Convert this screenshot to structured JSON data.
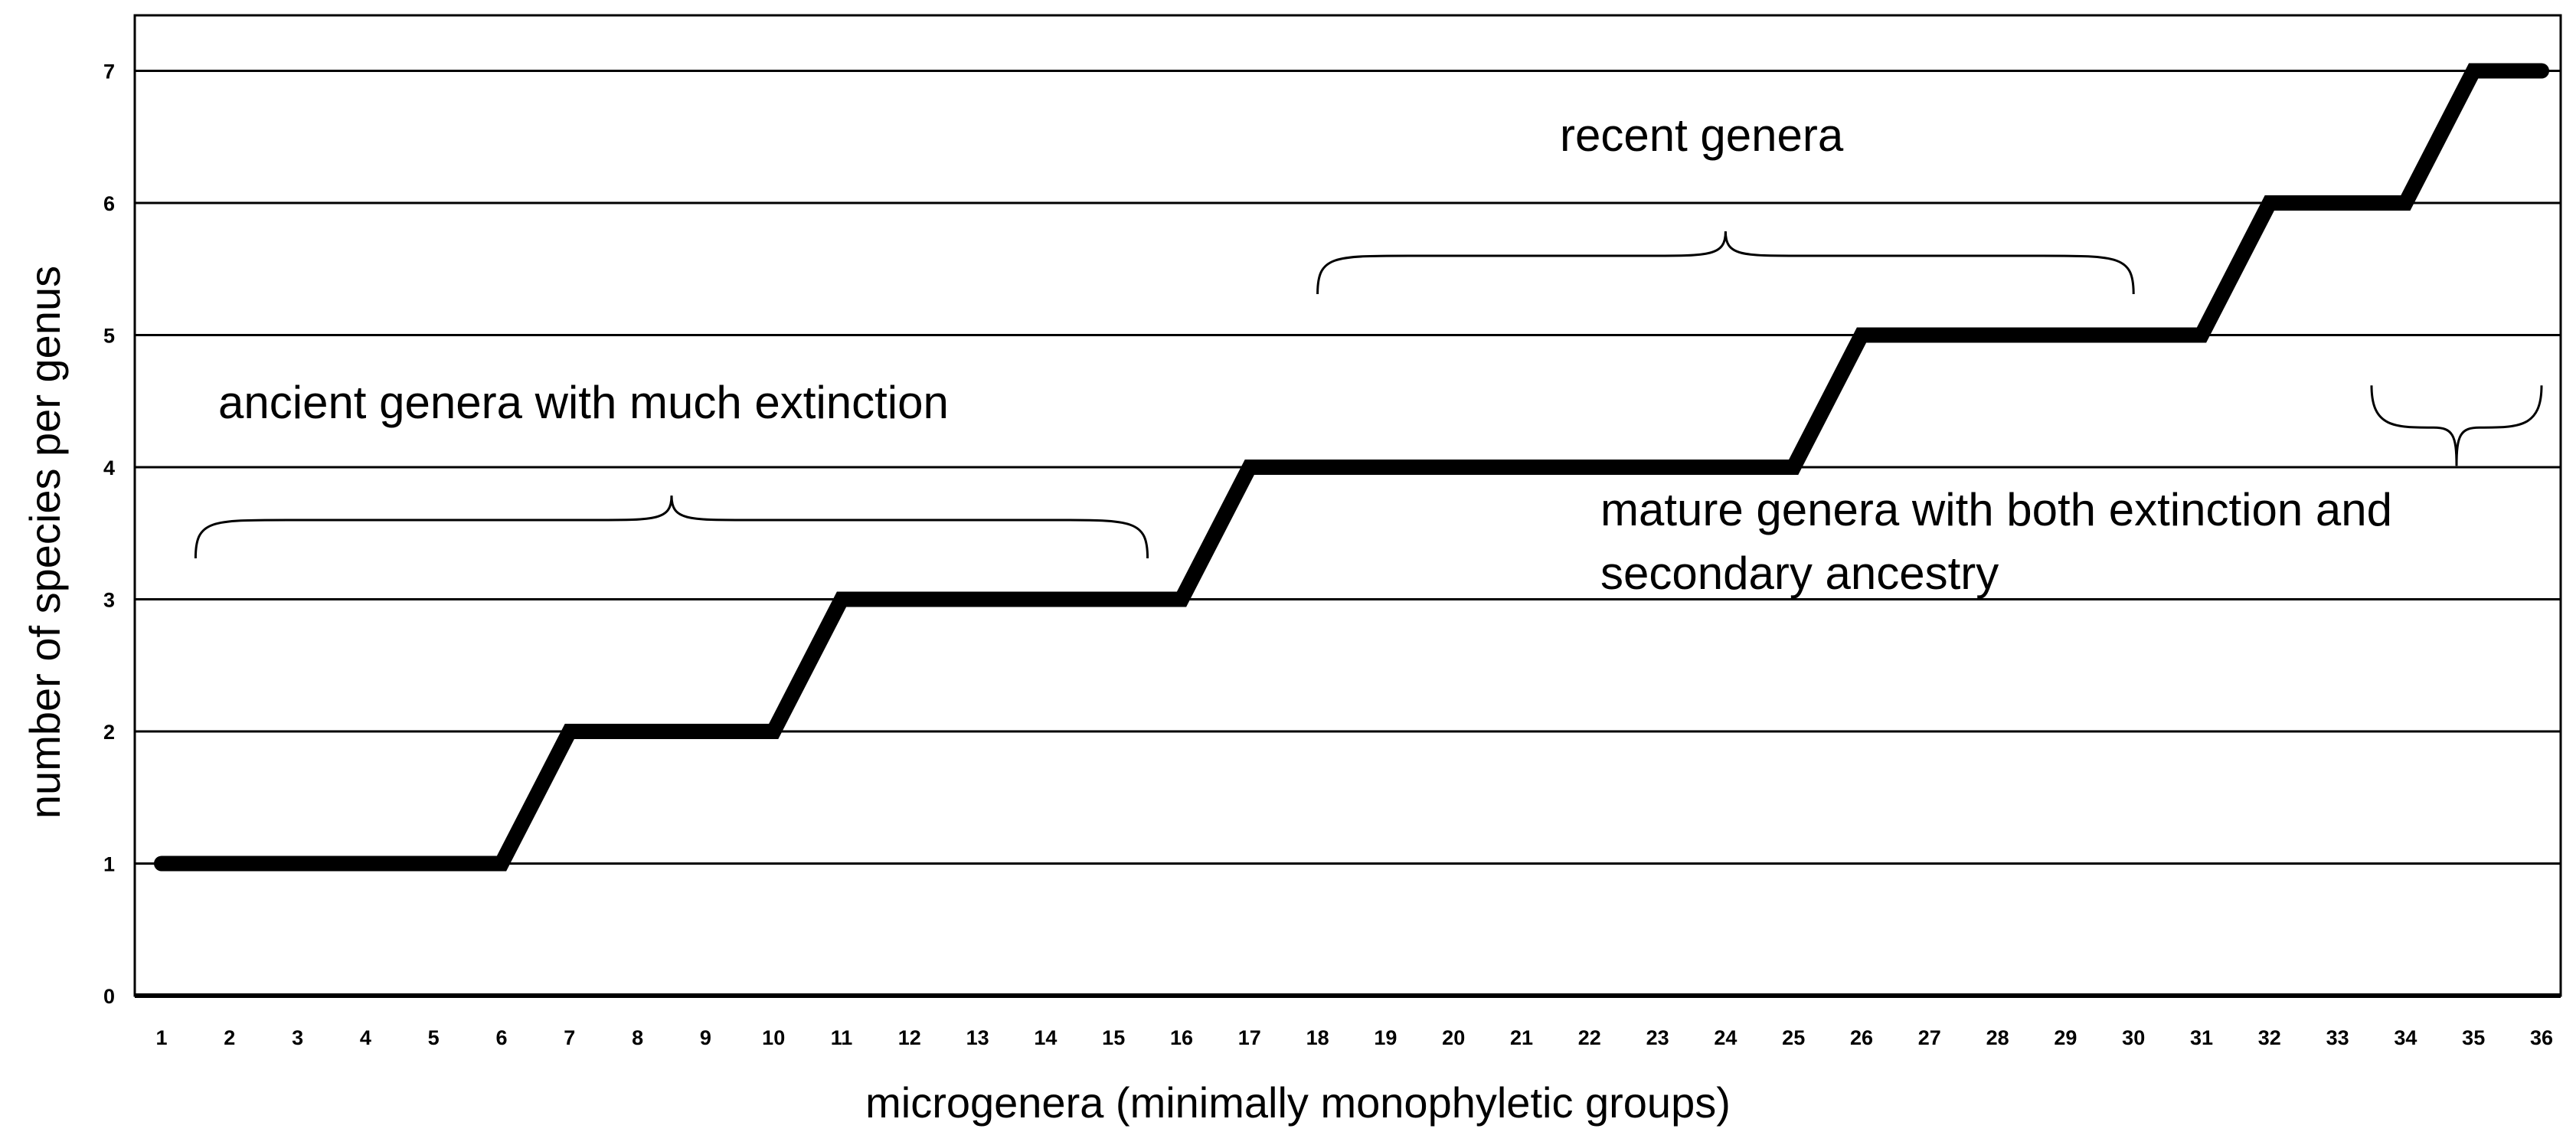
{
  "chart_data": {
    "type": "line",
    "title": "",
    "xlabel": "microgenera (minimally monophyletic groups)",
    "ylabel": "number of species per genus",
    "x_tick_labels": [
      "1",
      "2",
      "3",
      "4",
      "5",
      "6",
      "7",
      "8",
      "9",
      "10",
      "11",
      "12",
      "13",
      "14",
      "15",
      "16",
      "17",
      "18",
      "19",
      "20",
      "21",
      "22",
      "23",
      "24",
      "25",
      "26",
      "27",
      "28",
      "29",
      "30",
      "31",
      "32",
      "33",
      "34",
      "35",
      "36"
    ],
    "y_tick_labels": [
      "0",
      "1",
      "2",
      "3",
      "4",
      "5",
      "6",
      "7"
    ],
    "ylim": [
      0,
      7.4
    ],
    "grid": true,
    "series": [
      {
        "name": "species per genus",
        "points": [
          {
            "x": 1,
            "y": 1
          },
          {
            "x": 6,
            "y": 1
          },
          {
            "x": 7,
            "y": 2
          },
          {
            "x": 10,
            "y": 2
          },
          {
            "x": 11,
            "y": 3
          },
          {
            "x": 16,
            "y": 3
          },
          {
            "x": 17,
            "y": 4
          },
          {
            "x": 25,
            "y": 4
          },
          {
            "x": 26,
            "y": 5
          },
          {
            "x": 31,
            "y": 5
          },
          {
            "x": 32,
            "y": 6
          },
          {
            "x": 34,
            "y": 6
          },
          {
            "x": 35,
            "y": 7
          },
          {
            "x": 36,
            "y": 7
          }
        ]
      }
    ],
    "annotations": [
      {
        "text": "ancient genera with much extinction",
        "bracket_from": 1.5,
        "bracket_to": 15.5,
        "bracket_y": 3.6
      },
      {
        "text": "recent genera",
        "bracket_from": 18,
        "bracket_to": 30,
        "bracket_y": 5.6
      },
      {
        "text": "mature genera with both extinction and",
        "bracket_from": 33.5,
        "bracket_to": 36,
        "bracket_y": 4.3
      },
      {
        "text": "secondary ancestry"
      }
    ]
  }
}
